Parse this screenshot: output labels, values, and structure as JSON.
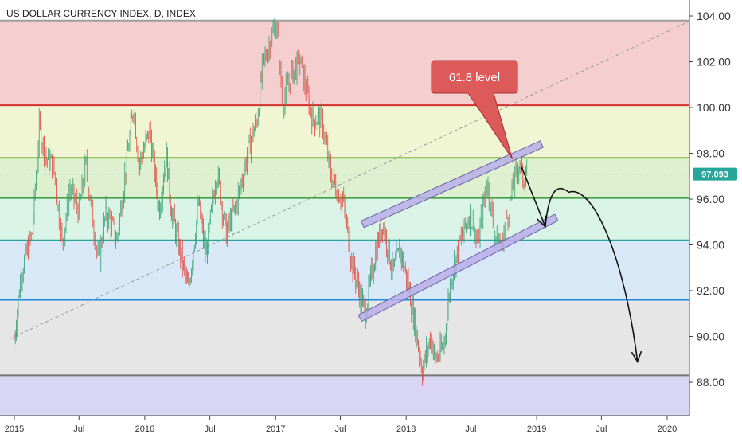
{
  "chart_data": {
    "type": "line",
    "title": "US DOLLAR CURRENCY INDEX, D, INDEX",
    "current_price": "97.093",
    "callout": "61.8 level",
    "yaxis": {
      "range": [
        86.5,
        104.6
      ],
      "tick_labels": [
        "104.00",
        "102.00",
        "100.00",
        "98.00",
        "96.00",
        "94.00",
        "92.00",
        "90.00",
        "88.00"
      ],
      "tick_values": [
        104,
        102,
        100,
        98,
        96,
        94,
        92,
        90,
        88
      ]
    },
    "xaxis": {
      "range": [
        "2015-01-01",
        "2020-07-01"
      ],
      "tick_labels": [
        "2015",
        "Jul",
        "2016",
        "Jul",
        "2017",
        "Jul",
        "2018",
        "Jul",
        "2019",
        "Jul",
        "2020"
      ],
      "tick_dates": [
        "2015-01-01",
        "2015-07-01",
        "2016-01-01",
        "2016-07-01",
        "2017-01-01",
        "2017-07-01",
        "2018-01-01",
        "2018-07-01",
        "2019-01-01",
        "2019-07-01",
        "2020-01-01"
      ]
    },
    "fib_levels": [
      {
        "value": 103.8,
        "color": "#9e9e9e"
      },
      {
        "value": 100.1,
        "color": "#d32f2f"
      },
      {
        "value": 97.8,
        "color": "#7cb342"
      },
      {
        "value": 96.05,
        "color": "#43a047"
      },
      {
        "value": 94.2,
        "color": "#26a69a"
      },
      {
        "value": 91.6,
        "color": "#1e88e5"
      },
      {
        "value": 88.3,
        "color": "#757575"
      }
    ],
    "fib_bands": [
      {
        "from": 100.1,
        "to": 103.8,
        "color": "#f5cfcf"
      },
      {
        "from": 97.8,
        "to": 100.1,
        "color": "#f0f5d4"
      },
      {
        "from": 96.05,
        "to": 97.8,
        "color": "#dff0d0"
      },
      {
        "from": 94.2,
        "to": 96.05,
        "color": "#d9f3e6"
      },
      {
        "from": 91.6,
        "to": 94.2,
        "color": "#d8e8f6"
      },
      {
        "from": 88.3,
        "to": 91.6,
        "color": "#e6e6e6"
      },
      {
        "from": 86.5,
        "to": 88.3,
        "color": "#d9d6f5"
      }
    ],
    "trendline": {
      "from": [
        "2014-12-20",
        89.9
      ],
      "to": [
        "2020-05-01",
        104.2
      ]
    },
    "channel": {
      "upper": {
        "from": [
          "2017-09-01",
          94.9
        ],
        "to": [
          "2019-01-15",
          98.4
        ]
      },
      "lower": {
        "from": [
          "2017-08-25",
          90.8
        ],
        "to": [
          "2019-02-25",
          95.2
        ]
      }
    },
    "projection": [
      [
        "2018-11-20",
        97.4
      ],
      [
        "2019-01-25",
        94.8
      ],
      [
        "2019-04-01",
        96.3
      ],
      [
        "2019-08-01",
        93.5
      ],
      [
        "2019-10-10",
        88.9
      ]
    ],
    "price_path": [
      [
        "2015-01-01",
        89.9
      ],
      [
        "2015-01-20",
        92.8
      ],
      [
        "2015-02-20",
        94.5
      ],
      [
        "2015-03-12",
        99.2
      ],
      [
        "2015-03-30",
        97.8
      ],
      [
        "2015-04-20",
        97.5
      ],
      [
        "2015-05-15",
        94.0
      ],
      [
        "2015-06-05",
        96.5
      ],
      [
        "2015-07-01",
        95.5
      ],
      [
        "2015-07-20",
        97.5
      ],
      [
        "2015-08-24",
        93.2
      ],
      [
        "2015-09-15",
        95.5
      ],
      [
        "2015-10-15",
        94.2
      ],
      [
        "2015-11-10",
        97.5
      ],
      [
        "2015-12-01",
        100.1
      ],
      [
        "2015-12-15",
        97.5
      ],
      [
        "2016-01-15",
        99.0
      ],
      [
        "2016-02-10",
        95.5
      ],
      [
        "2016-03-01",
        98.0
      ],
      [
        "2016-03-15",
        95.5
      ],
      [
        "2016-05-02",
        92.0
      ],
      [
        "2016-05-30",
        95.8
      ],
      [
        "2016-06-20",
        93.5
      ],
      [
        "2016-07-20",
        97.3
      ],
      [
        "2016-08-15",
        94.5
      ],
      [
        "2016-09-10",
        95.6
      ],
      [
        "2016-10-25",
        98.7
      ],
      [
        "2016-11-10",
        99.5
      ],
      [
        "2016-11-25",
        101.8
      ],
      [
        "2017-01-03",
        103.7
      ],
      [
        "2017-01-20",
        100.2
      ],
      [
        "2017-02-15",
        101.5
      ],
      [
        "2017-03-10",
        102.0
      ],
      [
        "2017-04-15",
        99.5
      ],
      [
        "2017-05-10",
        99.5
      ],
      [
        "2017-06-05",
        97.0
      ],
      [
        "2017-07-10",
        95.8
      ],
      [
        "2017-08-01",
        93.3
      ],
      [
        "2017-09-08",
        91.0
      ],
      [
        "2017-10-05",
        93.5
      ],
      [
        "2017-10-27",
        95.0
      ],
      [
        "2017-11-25",
        92.8
      ],
      [
        "2017-12-15",
        93.8
      ],
      [
        "2018-01-10",
        92.0
      ],
      [
        "2018-02-15",
        88.5
      ],
      [
        "2018-03-10",
        90.0
      ],
      [
        "2018-03-25",
        89.0
      ],
      [
        "2018-04-15",
        89.5
      ],
      [
        "2018-05-05",
        92.5
      ],
      [
        "2018-05-30",
        94.0
      ],
      [
        "2018-06-28",
        95.4
      ],
      [
        "2018-07-20",
        94.0
      ],
      [
        "2018-08-15",
        96.8
      ],
      [
        "2018-09-05",
        94.5
      ],
      [
        "2018-09-25",
        94.0
      ],
      [
        "2018-10-20",
        96.0
      ],
      [
        "2018-11-12",
        97.6
      ],
      [
        "2018-11-25",
        96.8
      ],
      [
        "2018-12-05",
        97.3
      ]
    ]
  }
}
